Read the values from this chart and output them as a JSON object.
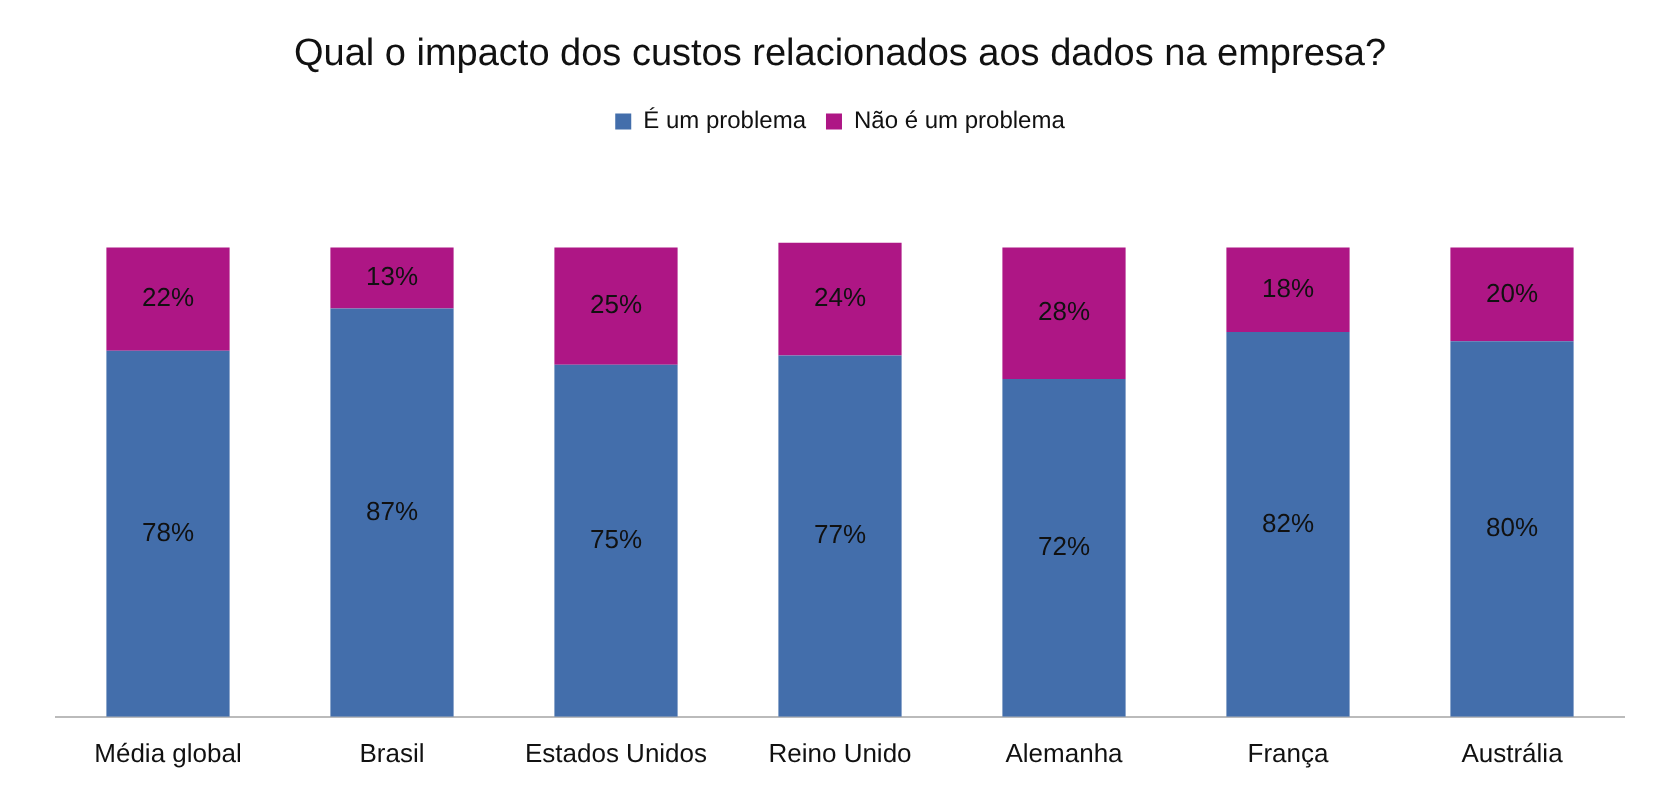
{
  "chart_data": {
    "type": "bar",
    "title": "Qual o impacto dos custos relacionados aos dados na empresa?",
    "categories": [
      "Média global",
      "Brasil",
      "Estados Unidos",
      "Reino Unido",
      "Alemanha",
      "França",
      "Austrália"
    ],
    "series": [
      {
        "name": "É um problema",
        "color": "#436eab",
        "values": [
          78,
          87,
          75,
          77,
          72,
          82,
          80
        ],
        "value_labels": [
          "78%",
          "87%",
          "75%",
          "77%",
          "72%",
          "82%",
          "80%"
        ]
      },
      {
        "name": "Não é um problema",
        "color": "#ae1685",
        "values": [
          22,
          13,
          25,
          24,
          28,
          18,
          20
        ],
        "value_labels": [
          "22%",
          "13%",
          "25%",
          "24%",
          "28%",
          "18%",
          "20%"
        ]
      }
    ],
    "stacked": true,
    "legend": "top",
    "grid": false,
    "tick_labels": "x"
  }
}
